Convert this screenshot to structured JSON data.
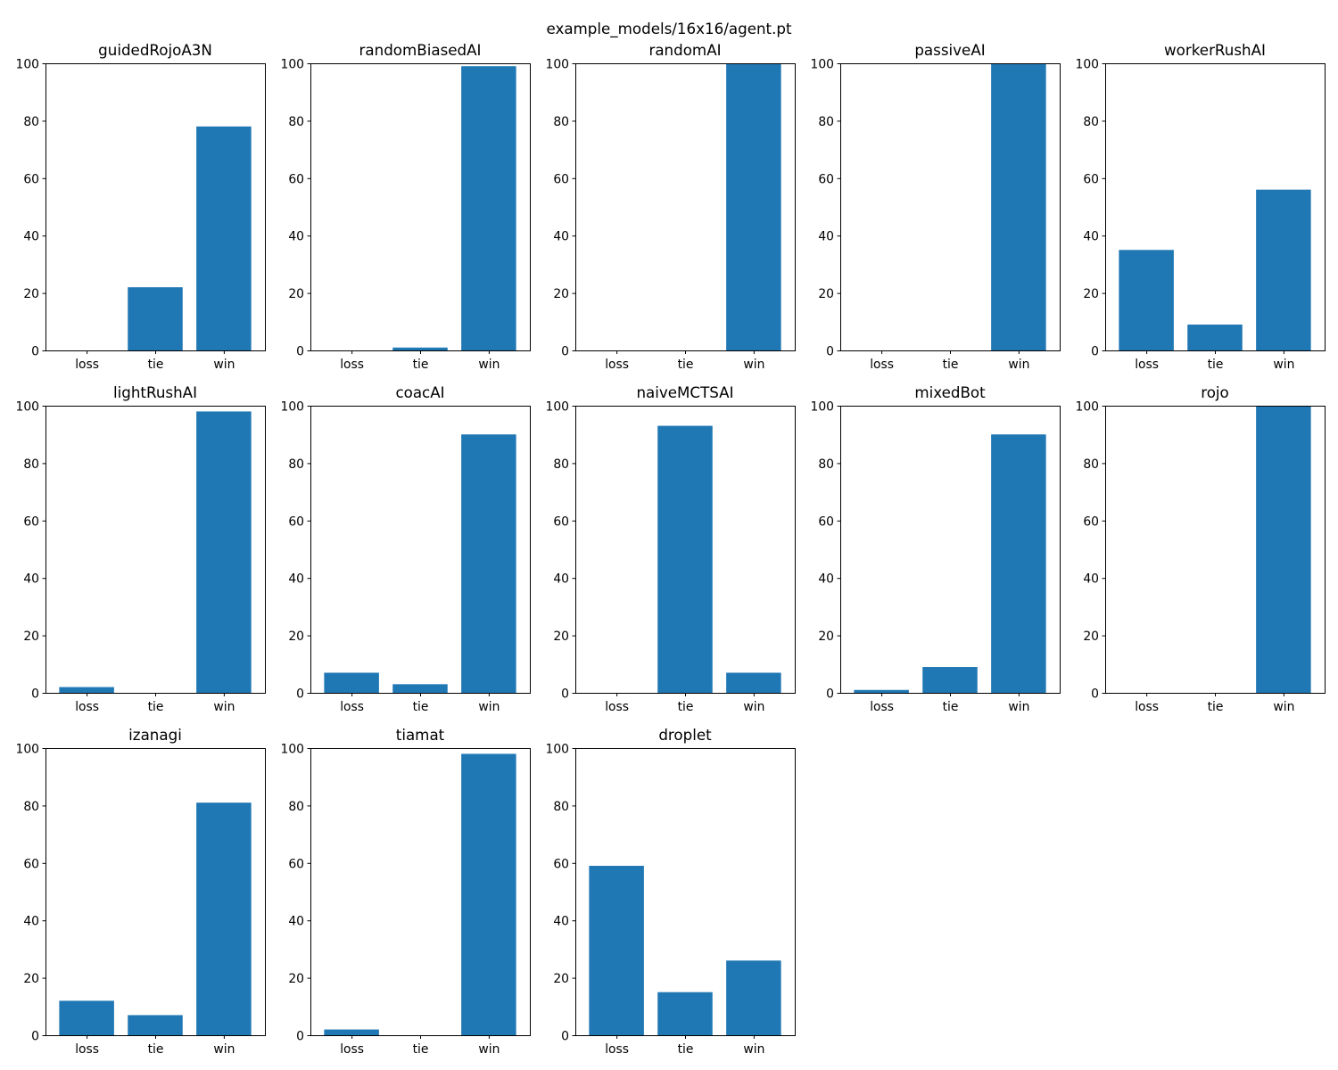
{
  "chart_data": {
    "type": "bar",
    "title": "example_models/16x16/agent.pt",
    "bar_color": "#1f77b4",
    "categories": [
      "loss",
      "tie",
      "win"
    ],
    "ylim": [
      0,
      100
    ],
    "yticks": [
      0,
      20,
      40,
      60,
      80,
      100
    ],
    "xlabel": "",
    "ylabel": "",
    "grid": false,
    "subplots": [
      {
        "title": "guidedRojoA3N",
        "values": [
          0,
          22,
          78
        ]
      },
      {
        "title": "randomBiasedAI",
        "values": [
          0,
          1,
          99
        ]
      },
      {
        "title": "randomAI",
        "values": [
          0,
          0,
          100
        ]
      },
      {
        "title": "passiveAI",
        "values": [
          0,
          0,
          100
        ]
      },
      {
        "title": "workerRushAI",
        "values": [
          35,
          9,
          56
        ]
      },
      {
        "title": "lightRushAI",
        "values": [
          2,
          0,
          98
        ]
      },
      {
        "title": "coacAI",
        "values": [
          7,
          3,
          90
        ]
      },
      {
        "title": "naiveMCTSAI",
        "values": [
          0,
          93,
          7
        ]
      },
      {
        "title": "mixedBot",
        "values": [
          1,
          9,
          90
        ]
      },
      {
        "title": "rojo",
        "values": [
          0,
          0,
          100
        ]
      },
      {
        "title": "izanagi",
        "values": [
          12,
          7,
          81
        ]
      },
      {
        "title": "tiamat",
        "values": [
          2,
          0,
          98
        ]
      },
      {
        "title": "droplet",
        "values": [
          59,
          15,
          26
        ]
      }
    ]
  }
}
